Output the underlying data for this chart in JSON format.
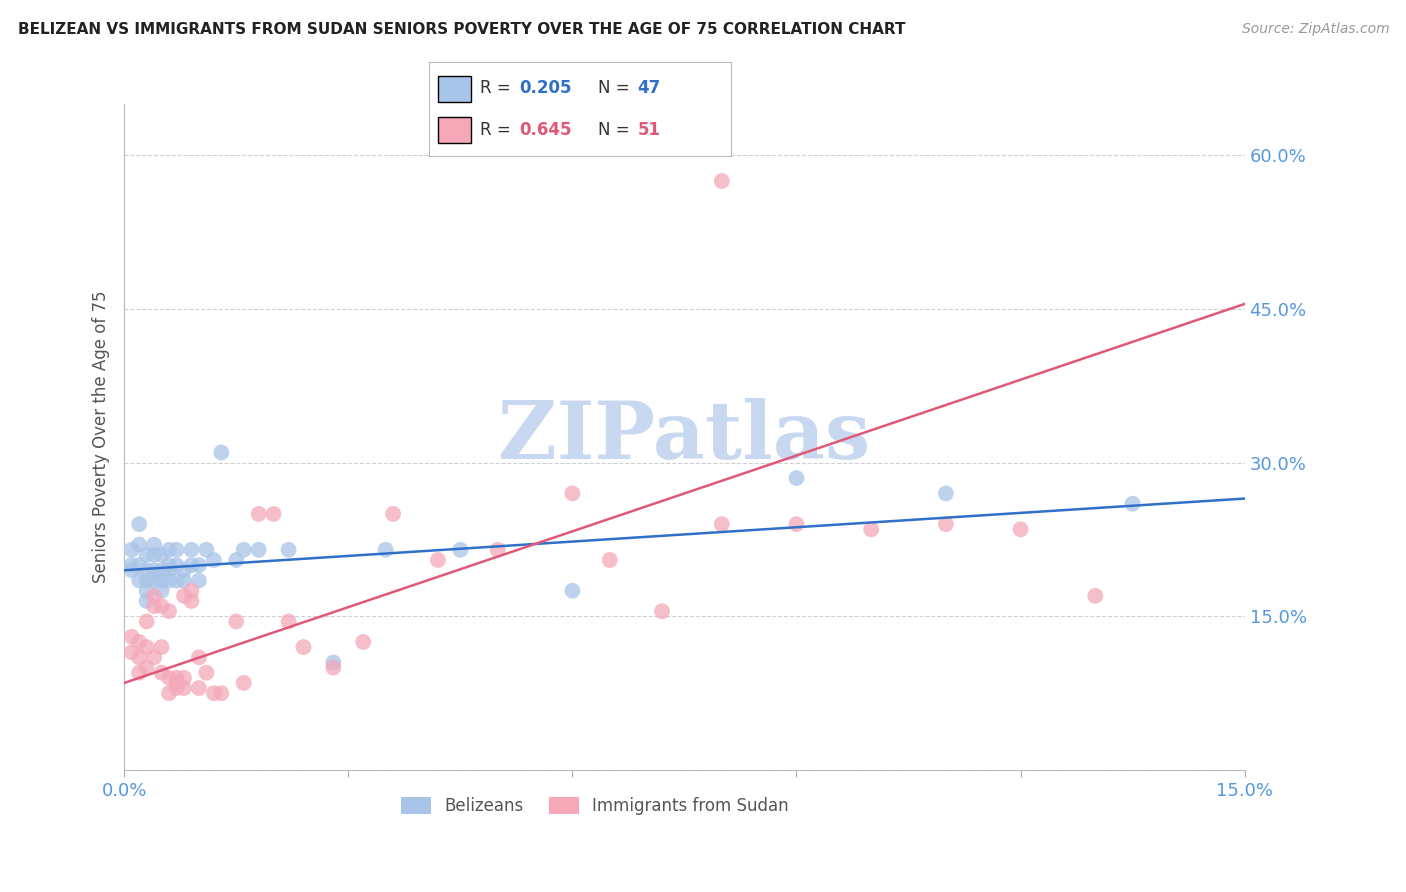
{
  "title": "BELIZEAN VS IMMIGRANTS FROM SUDAN SENIORS POVERTY OVER THE AGE OF 75 CORRELATION CHART",
  "source": "Source: ZipAtlas.com",
  "ylabel": "Seniors Poverty Over the Age of 75",
  "x_min": 0.0,
  "x_max": 0.15,
  "y_min": 0.0,
  "y_max": 0.65,
  "x_ticks": [
    0.0,
    0.03,
    0.06,
    0.09,
    0.12,
    0.15
  ],
  "x_tick_labels": [
    "0.0%",
    "",
    "",
    "",
    "",
    "15.0%"
  ],
  "y_ticks": [
    0.0,
    0.15,
    0.3,
    0.45,
    0.6
  ],
  "y_tick_labels": [
    "",
    "15.0%",
    "30.0%",
    "45.0%",
    "60.0%"
  ],
  "grid_color": "#d0d0d0",
  "background_color": "#ffffff",
  "belizean_color": "#a8c4e8",
  "sudan_color": "#f4a8b8",
  "belizean_line_color": "#3070c8",
  "sudan_line_color": "#e05878",
  "tick_label_color": "#5599dd",
  "R_belizean": 0.205,
  "N_belizean": 47,
  "R_sudan": 0.645,
  "N_sudan": 51,
  "watermark": "ZIPatlas",
  "watermark_color": "#c8d8f0",
  "belizean_legend": "Belizeans",
  "sudan_legend": "Immigrants from Sudan",
  "belizean_line_x0": 0.0,
  "belizean_line_y0": 0.195,
  "belizean_line_x1": 0.15,
  "belizean_line_y1": 0.265,
  "sudan_line_x0": 0.0,
  "sudan_line_y0": 0.085,
  "sudan_line_x1": 0.15,
  "sudan_line_y1": 0.455,
  "belizean_x": [
    0.001,
    0.001,
    0.001,
    0.002,
    0.002,
    0.002,
    0.002,
    0.003,
    0.003,
    0.003,
    0.003,
    0.003,
    0.004,
    0.004,
    0.004,
    0.004,
    0.005,
    0.005,
    0.005,
    0.005,
    0.006,
    0.006,
    0.006,
    0.006,
    0.007,
    0.007,
    0.007,
    0.008,
    0.008,
    0.009,
    0.009,
    0.01,
    0.01,
    0.011,
    0.012,
    0.013,
    0.015,
    0.016,
    0.018,
    0.022,
    0.028,
    0.035,
    0.045,
    0.06,
    0.09,
    0.11,
    0.135
  ],
  "belizean_y": [
    0.195,
    0.2,
    0.215,
    0.185,
    0.2,
    0.22,
    0.24,
    0.185,
    0.195,
    0.21,
    0.175,
    0.165,
    0.195,
    0.185,
    0.21,
    0.22,
    0.185,
    0.195,
    0.175,
    0.21,
    0.195,
    0.185,
    0.2,
    0.215,
    0.185,
    0.2,
    0.215,
    0.195,
    0.185,
    0.2,
    0.215,
    0.185,
    0.2,
    0.215,
    0.205,
    0.31,
    0.205,
    0.215,
    0.215,
    0.215,
    0.105,
    0.215,
    0.215,
    0.175,
    0.285,
    0.27,
    0.26
  ],
  "sudan_x": [
    0.001,
    0.001,
    0.002,
    0.002,
    0.002,
    0.003,
    0.003,
    0.003,
    0.004,
    0.004,
    0.004,
    0.005,
    0.005,
    0.005,
    0.006,
    0.006,
    0.006,
    0.007,
    0.007,
    0.007,
    0.008,
    0.008,
    0.008,
    0.009,
    0.009,
    0.01,
    0.01,
    0.011,
    0.012,
    0.013,
    0.015,
    0.016,
    0.018,
    0.02,
    0.022,
    0.024,
    0.028,
    0.032,
    0.036,
    0.042,
    0.05,
    0.06,
    0.065,
    0.072,
    0.08,
    0.09,
    0.1,
    0.11,
    0.12,
    0.13,
    0.08
  ],
  "sudan_y": [
    0.115,
    0.13,
    0.11,
    0.125,
    0.095,
    0.12,
    0.1,
    0.145,
    0.16,
    0.17,
    0.11,
    0.095,
    0.12,
    0.16,
    0.09,
    0.075,
    0.155,
    0.09,
    0.08,
    0.085,
    0.08,
    0.09,
    0.17,
    0.165,
    0.175,
    0.11,
    0.08,
    0.095,
    0.075,
    0.075,
    0.145,
    0.085,
    0.25,
    0.25,
    0.145,
    0.12,
    0.1,
    0.125,
    0.25,
    0.205,
    0.215,
    0.27,
    0.205,
    0.155,
    0.24,
    0.24,
    0.235,
    0.24,
    0.235,
    0.17,
    0.575
  ]
}
